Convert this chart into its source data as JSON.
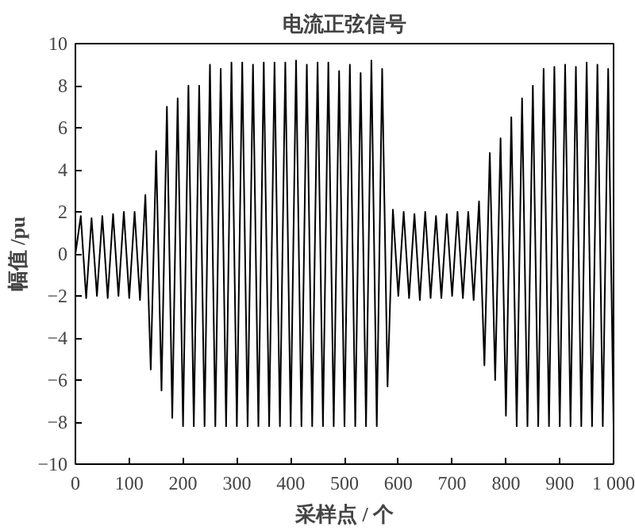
{
  "chart_data": {
    "type": "line",
    "title": "电流正弦信号",
    "xlabel": "采样点 / 个",
    "ylabel": "幅值 /pu",
    "x": [
      0,
      10,
      20,
      30,
      40,
      50,
      60,
      70,
      80,
      90,
      100,
      110,
      120,
      130,
      140,
      150,
      160,
      170,
      180,
      190,
      200,
      210,
      220,
      230,
      240,
      250,
      260,
      270,
      280,
      290,
      300,
      310,
      320,
      330,
      340,
      350,
      360,
      370,
      380,
      390,
      400,
      410,
      420,
      430,
      440,
      450,
      460,
      470,
      480,
      490,
      500,
      510,
      520,
      530,
      540,
      550,
      560,
      570,
      580,
      590,
      600,
      610,
      620,
      630,
      640,
      650,
      660,
      670,
      680,
      690,
      700,
      710,
      720,
      730,
      740,
      750,
      760,
      770,
      780,
      790,
      800,
      810,
      820,
      830,
      840,
      850,
      860,
      870,
      880,
      890,
      900,
      910,
      920,
      930,
      940,
      950,
      960,
      970,
      980,
      990,
      1000
    ],
    "series": [
      {
        "color": "#000000",
        "values": [
          0,
          1.8,
          -2.1,
          1.7,
          -2.0,
          1.8,
          -2.1,
          1.9,
          -2.0,
          2.0,
          -2.1,
          2.0,
          -2.2,
          2.8,
          -5.5,
          4.9,
          -6.5,
          7.0,
          -7.8,
          7.4,
          -8.2,
          8.0,
          -8.2,
          8.0,
          -8.2,
          9.0,
          -8.2,
          8.8,
          -8.2,
          9.1,
          -8.2,
          9.1,
          -8.2,
          9.0,
          -8.2,
          9.1,
          -8.2,
          9.1,
          -8.2,
          9.1,
          -8.2,
          9.2,
          -8.2,
          9.0,
          -8.2,
          9.1,
          -8.2,
          9.1,
          -8.2,
          8.7,
          -8.2,
          9.0,
          -8.2,
          8.6,
          -8.2,
          9.2,
          -8.2,
          8.8,
          -6.3,
          2.1,
          -2.0,
          2.0,
          -2.1,
          1.9,
          -2.2,
          2.0,
          -2.1,
          1.8,
          -2.1,
          1.9,
          -2.0,
          2.0,
          -2.1,
          2.0,
          -2.2,
          2.5,
          -5.3,
          4.8,
          -6.0,
          5.5,
          -7.7,
          6.5,
          -8.2,
          7.4,
          -8.2,
          8.0,
          -8.2,
          8.8,
          -8.2,
          8.9,
          -8.2,
          9.0,
          -8.2,
          8.9,
          -8.2,
          9.1,
          -8.2,
          9.0,
          -8.2,
          8.8,
          -8.2
        ]
      }
    ],
    "xlim": [
      0,
      1000
    ],
    "xticks": [
      0,
      100,
      200,
      300,
      400,
      500,
      600,
      700,
      800,
      900,
      {
        "value": 1000,
        "label": "1 000"
      }
    ],
    "ylim": [
      -10,
      10
    ],
    "yticks": [
      -10,
      -8,
      -6,
      -4,
      -2,
      0,
      2,
      4,
      6,
      8,
      10
    ],
    "grid": false
  }
}
